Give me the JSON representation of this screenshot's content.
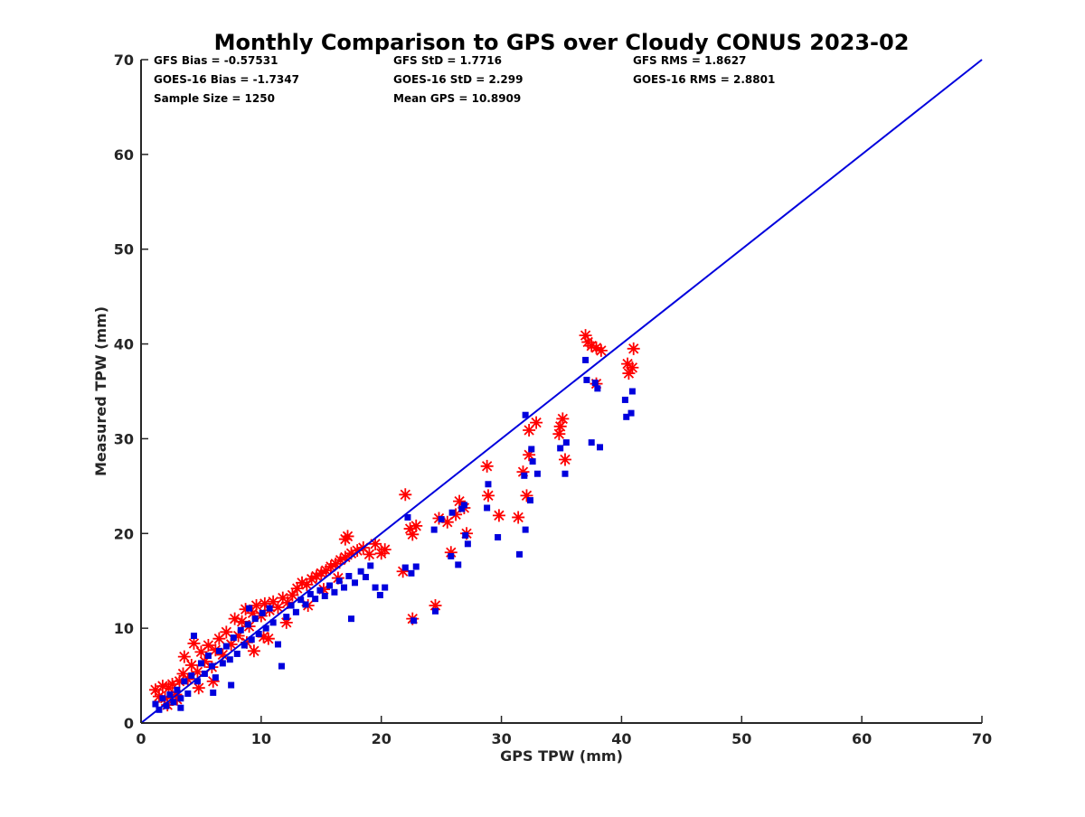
{
  "chart_data": {
    "type": "scatter",
    "title": "Monthly Comparison to GPS over Cloudy CONUS 2023-02",
    "xlabel": "GPS TPW (mm)",
    "ylabel": "Measured TPW (mm)",
    "xlim": [
      0,
      70
    ],
    "ylim": [
      0,
      70
    ],
    "xticks": [
      "0",
      "10",
      "20",
      "30",
      "40",
      "50",
      "60",
      "70"
    ],
    "yticks": [
      "0",
      "10",
      "20",
      "30",
      "40",
      "50",
      "60",
      "70"
    ],
    "grid": false,
    "stats": [
      {
        "col": 0,
        "row": 0,
        "text": "GFS Bias = -0.57531"
      },
      {
        "col": 1,
        "row": 0,
        "text": "GFS StD = 1.7716"
      },
      {
        "col": 2,
        "row": 0,
        "text": "GFS RMS = 1.8627"
      },
      {
        "col": 0,
        "row": 1,
        "text": "GOES-16 Bias = -1.7347"
      },
      {
        "col": 1,
        "row": 1,
        "text": "GOES-16 StD = 2.299"
      },
      {
        "col": 2,
        "row": 1,
        "text": "GOES-16 RMS = 2.8801"
      },
      {
        "col": 0,
        "row": 2,
        "text": "Sample Size = 1250"
      },
      {
        "col": 1,
        "row": 2,
        "text": "Mean GPS = 10.8909"
      }
    ],
    "reference_line": {
      "name": "1:1 line",
      "color": "#0000dd",
      "x": [
        0,
        70
      ],
      "y": [
        0,
        70
      ]
    },
    "series": [
      {
        "name": "GFS",
        "marker": "asterisk",
        "color": "#ff0000",
        "points": [
          [
            1.2,
            3.5
          ],
          [
            1.5,
            2.8
          ],
          [
            1.8,
            3.9
          ],
          [
            2.0,
            2.6
          ],
          [
            2.3,
            3.7
          ],
          [
            2.6,
            4.1
          ],
          [
            2.9,
            3.0
          ],
          [
            3.2,
            4.4
          ],
          [
            3.5,
            5.2
          ],
          [
            3.6,
            7.0
          ],
          [
            3.9,
            4.6
          ],
          [
            4.2,
            6.1
          ],
          [
            4.4,
            8.4
          ],
          [
            4.7,
            5.4
          ],
          [
            5.0,
            7.5
          ],
          [
            5.3,
            6.5
          ],
          [
            5.6,
            8.2
          ],
          [
            5.9,
            5.9
          ],
          [
            6.2,
            7.7
          ],
          [
            6.5,
            8.9
          ],
          [
            6.8,
            7.2
          ],
          [
            7.1,
            9.6
          ],
          [
            7.5,
            8.3
          ],
          [
            7.8,
            11.0
          ],
          [
            8.1,
            9.2
          ],
          [
            8.4,
            10.7
          ],
          [
            8.7,
            12.0
          ],
          [
            9.0,
            10.2
          ],
          [
            9.3,
            11.6
          ],
          [
            9.6,
            12.4
          ],
          [
            10.0,
            11.3
          ],
          [
            10.3,
            12.6
          ],
          [
            10.7,
            11.9
          ],
          [
            11.0,
            12.8
          ],
          [
            11.4,
            12.2
          ],
          [
            11.8,
            13.2
          ],
          [
            12.2,
            12.7
          ],
          [
            12.6,
            13.5
          ],
          [
            13.0,
            14.2
          ],
          [
            13.4,
            14.8
          ],
          [
            13.8,
            14.6
          ],
          [
            14.2,
            15.2
          ],
          [
            14.6,
            15.5
          ],
          [
            15.0,
            15.8
          ],
          [
            15.4,
            16.1
          ],
          [
            15.8,
            16.5
          ],
          [
            16.2,
            16.8
          ],
          [
            16.6,
            17.2
          ],
          [
            17.0,
            17.5
          ],
          [
            17.0,
            19.4
          ],
          [
            17.2,
            19.7
          ],
          [
            17.5,
            17.9
          ],
          [
            18.0,
            18.2
          ],
          [
            18.5,
            18.5
          ],
          [
            19.0,
            17.8
          ],
          [
            19.5,
            18.9
          ],
          [
            20.0,
            17.9
          ],
          [
            20.3,
            18.3
          ],
          [
            8.8,
            8.5
          ],
          [
            9.4,
            7.6
          ],
          [
            10.6,
            8.9
          ],
          [
            12.1,
            10.6
          ],
          [
            13.9,
            12.4
          ],
          [
            15.2,
            14.1
          ],
          [
            16.4,
            15.3
          ],
          [
            10.2,
            9.1
          ],
          [
            6.0,
            4.4
          ],
          [
            4.8,
            3.7
          ],
          [
            3.0,
            2.5
          ],
          [
            2.2,
            1.9
          ],
          [
            21.8,
            16.0
          ],
          [
            22.0,
            24.1
          ],
          [
            22.4,
            20.5
          ],
          [
            22.6,
            19.9
          ],
          [
            22.9,
            20.8
          ],
          [
            22.6,
            11.0
          ],
          [
            24.5,
            12.4
          ],
          [
            24.8,
            21.6
          ],
          [
            25.5,
            21.2
          ],
          [
            25.8,
            18.0
          ],
          [
            26.2,
            22.0
          ],
          [
            26.5,
            23.4
          ],
          [
            26.9,
            22.7
          ],
          [
            27.1,
            20.0
          ],
          [
            28.8,
            27.1
          ],
          [
            28.9,
            24.0
          ],
          [
            29.8,
            21.9
          ],
          [
            31.4,
            21.7
          ],
          [
            31.8,
            26.5
          ],
          [
            32.1,
            24.0
          ],
          [
            32.3,
            28.3
          ],
          [
            32.3,
            30.9
          ],
          [
            32.9,
            31.7
          ],
          [
            34.8,
            30.5
          ],
          [
            34.9,
            31.3
          ],
          [
            35.1,
            32.1
          ],
          [
            35.3,
            27.8
          ],
          [
            37.0,
            40.9
          ],
          [
            37.2,
            40.2
          ],
          [
            37.5,
            39.8
          ],
          [
            37.9,
            39.6
          ],
          [
            38.3,
            39.3
          ],
          [
            37.9,
            35.8
          ],
          [
            40.5,
            37.9
          ],
          [
            40.6,
            36.9
          ],
          [
            40.9,
            37.5
          ],
          [
            41.0,
            39.5
          ]
        ]
      },
      {
        "name": "GOES-16",
        "marker": "square",
        "color": "#0000dd",
        "points": [
          [
            1.2,
            2.0
          ],
          [
            1.5,
            1.4
          ],
          [
            1.8,
            2.6
          ],
          [
            2.1,
            1.8
          ],
          [
            2.4,
            3.0
          ],
          [
            2.7,
            2.2
          ],
          [
            3.0,
            3.5
          ],
          [
            3.3,
            2.6
          ],
          [
            3.6,
            4.4
          ],
          [
            3.9,
            3.1
          ],
          [
            4.2,
            5.0
          ],
          [
            4.4,
            9.2
          ],
          [
            4.7,
            4.4
          ],
          [
            5.0,
            6.3
          ],
          [
            5.3,
            5.2
          ],
          [
            5.6,
            7.1
          ],
          [
            5.9,
            6.0
          ],
          [
            6.2,
            4.8
          ],
          [
            6.5,
            7.6
          ],
          [
            6.8,
            6.3
          ],
          [
            7.1,
            8.1
          ],
          [
            7.4,
            6.7
          ],
          [
            7.7,
            9.0
          ],
          [
            8.0,
            7.3
          ],
          [
            8.3,
            9.8
          ],
          [
            8.6,
            8.2
          ],
          [
            8.9,
            10.4
          ],
          [
            9.2,
            8.8
          ],
          [
            9.5,
            11.0
          ],
          [
            9.8,
            9.4
          ],
          [
            10.1,
            11.6
          ],
          [
            10.4,
            10.0
          ],
          [
            10.7,
            12.1
          ],
          [
            11.0,
            10.6
          ],
          [
            11.4,
            8.3
          ],
          [
            11.7,
            6.0
          ],
          [
            12.1,
            11.2
          ],
          [
            12.5,
            12.4
          ],
          [
            12.9,
            11.7
          ],
          [
            13.3,
            13.0
          ],
          [
            13.7,
            12.5
          ],
          [
            14.1,
            13.6
          ],
          [
            14.5,
            13.1
          ],
          [
            14.9,
            14.0
          ],
          [
            15.3,
            13.4
          ],
          [
            15.7,
            14.5
          ],
          [
            16.1,
            13.8
          ],
          [
            16.5,
            15.0
          ],
          [
            16.9,
            14.3
          ],
          [
            17.3,
            15.5
          ],
          [
            17.5,
            11.0
          ],
          [
            17.8,
            14.8
          ],
          [
            18.3,
            16.0
          ],
          [
            18.7,
            15.4
          ],
          [
            19.1,
            16.6
          ],
          [
            19.5,
            14.3
          ],
          [
            19.9,
            13.5
          ],
          [
            20.3,
            14.3
          ],
          [
            9.0,
            12.1
          ],
          [
            7.5,
            4.0
          ],
          [
            6.0,
            3.2
          ],
          [
            3.3,
            1.6
          ],
          [
            22.0,
            16.4
          ],
          [
            22.2,
            21.7
          ],
          [
            22.5,
            15.8
          ],
          [
            22.7,
            10.8
          ],
          [
            22.9,
            16.5
          ],
          [
            24.4,
            20.4
          ],
          [
            24.5,
            11.8
          ],
          [
            25.0,
            21.5
          ],
          [
            25.9,
            22.2
          ],
          [
            25.8,
            17.6
          ],
          [
            26.4,
            16.7
          ],
          [
            26.7,
            22.6
          ],
          [
            26.9,
            23.0
          ],
          [
            27.2,
            18.9
          ],
          [
            27.0,
            19.8
          ],
          [
            28.8,
            22.7
          ],
          [
            28.9,
            25.2
          ],
          [
            29.7,
            19.6
          ],
          [
            31.5,
            17.8
          ],
          [
            31.9,
            26.1
          ],
          [
            32.0,
            32.5
          ],
          [
            32.0,
            20.4
          ],
          [
            32.4,
            23.5
          ],
          [
            32.6,
            27.6
          ],
          [
            32.5,
            28.9
          ],
          [
            33.0,
            26.3
          ],
          [
            34.9,
            29.0
          ],
          [
            35.3,
            26.3
          ],
          [
            35.4,
            29.6
          ],
          [
            37.0,
            38.3
          ],
          [
            37.1,
            36.2
          ],
          [
            37.5,
            29.6
          ],
          [
            37.8,
            35.9
          ],
          [
            38.0,
            35.3
          ],
          [
            38.2,
            29.1
          ],
          [
            40.3,
            34.1
          ],
          [
            40.4,
            32.3
          ],
          [
            40.8,
            32.7
          ],
          [
            40.9,
            35.0
          ]
        ]
      }
    ]
  }
}
